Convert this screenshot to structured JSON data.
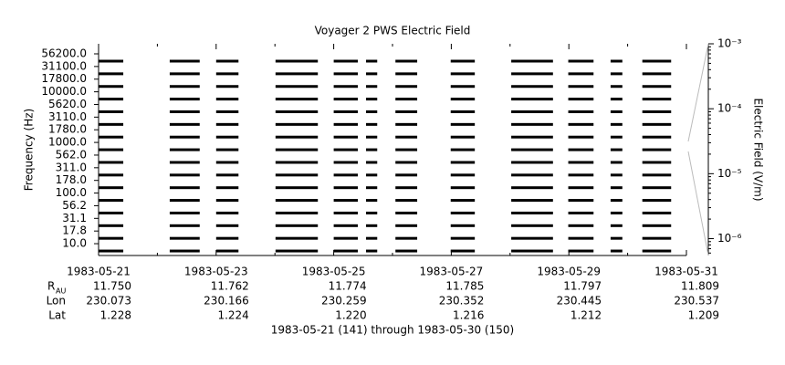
{
  "chart_data": {
    "type": "line",
    "title": "Voyager 2 PWS Electric Field",
    "ylabel": "Frequency (Hz)",
    "y2label": "Electric Field (V/m)",
    "xlabel": "1983-05-21 (141) through 1983-05-30 (150)",
    "categories": [
      "56200.0",
      "31100.0",
      "17800.0",
      "10000.0",
      "5620.0",
      "3110.0",
      "1780.0",
      "1000.0",
      "562.0",
      "311.0",
      "178.0",
      "100.0",
      "56.2",
      "31.1",
      "17.8",
      "10.0"
    ],
    "color": "#000000",
    "xlim": [
      0,
      10
    ],
    "xticks": [
      {
        "value": 0,
        "label": "1983-05-21"
      },
      {
        "value": 2,
        "label": "1983-05-23"
      },
      {
        "value": 4,
        "label": "1983-05-25"
      },
      {
        "value": 6,
        "label": "1983-05-27"
      },
      {
        "value": 8,
        "label": "1983-05-29"
      },
      {
        "value": 10,
        "label": "1983-05-31"
      }
    ],
    "segments": [
      [
        0,
        0.42
      ],
      [
        1.21,
        1.72
      ],
      [
        2.0,
        2.38
      ],
      [
        3.01,
        3.73
      ],
      [
        4.0,
        4.41
      ],
      [
        4.55,
        4.74
      ],
      [
        5.05,
        5.42
      ],
      [
        5.99,
        6.4
      ],
      [
        7.02,
        7.73
      ],
      [
        7.99,
        8.42
      ],
      [
        8.71,
        8.91
      ],
      [
        9.25,
        9.74
      ]
    ],
    "y2log": true,
    "y2lim": [
      5.5e-07,
      0.001
    ],
    "y2ticks": [
      {
        "value": 0.001,
        "label": "10⁻³"
      },
      {
        "value": 0.0001,
        "label": "10⁻⁴"
      },
      {
        "value": 1e-05,
        "label": "10⁻⁵"
      },
      {
        "value": 1e-06,
        "label": "10⁻⁶"
      }
    ],
    "ephemeris": [
      {
        "label": "R",
        "subscript": "AU",
        "values": [
          "11.750",
          "11.762",
          "11.774",
          "11.785",
          "11.797",
          "11.809"
        ]
      },
      {
        "label": "Lon",
        "values": [
          "230.073",
          "230.166",
          "230.259",
          "230.352",
          "230.445",
          "230.537"
        ]
      },
      {
        "label": "Lat",
        "values": [
          "1.228",
          "1.224",
          "1.220",
          "1.216",
          "1.212",
          "1.209"
        ]
      }
    ]
  }
}
